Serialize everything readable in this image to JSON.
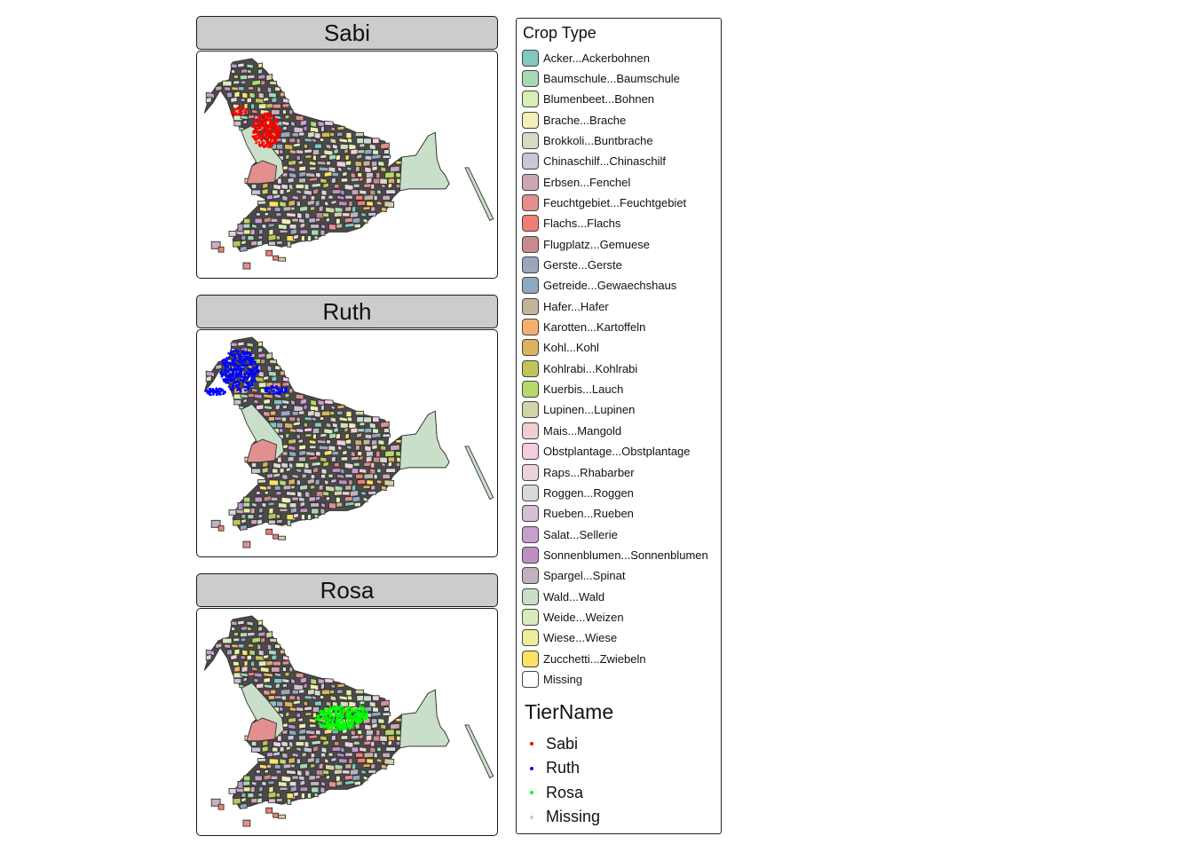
{
  "panels": [
    {
      "title": "Sabi",
      "color": "#ff0000",
      "cluster": "sabi"
    },
    {
      "title": "Ruth",
      "color": "#0000ff",
      "cluster": "ruth"
    },
    {
      "title": "Rosa",
      "color": "#00ff00",
      "cluster": "rosa"
    }
  ],
  "legend": {
    "title": "Crop Type",
    "items": [
      {
        "label": "Acker...Ackerbohnen",
        "color": "#7fc9c0"
      },
      {
        "label": "Baumschule...Baumschule",
        "color": "#a8d8b5"
      },
      {
        "label": "Blumenbeet...Bohnen",
        "color": "#d9eeb5"
      },
      {
        "label": "Brache...Brache",
        "color": "#f2efb8"
      },
      {
        "label": "Brokkoli...Buntbrache",
        "color": "#d9d9c6"
      },
      {
        "label": "Chinaschilf...Chinaschilf",
        "color": "#c9c6d8"
      },
      {
        "label": "Erbsen...Fenchel",
        "color": "#cfa6b8"
      },
      {
        "label": "Feuchtgebiet...Feuchtgebiet",
        "color": "#e28f8f"
      },
      {
        "label": "Flachs...Flachs",
        "color": "#f07f72"
      },
      {
        "label": "Flugplatz...Gemuese",
        "color": "#c9898e"
      },
      {
        "label": "Gerste...Gerste",
        "color": "#9aa6bd"
      },
      {
        "label": "Getreide...Gewaechshaus",
        "color": "#8ea9c0"
      },
      {
        "label": "Hafer...Hafer",
        "color": "#c4b39c"
      },
      {
        "label": "Karotten...Kartoffeln",
        "color": "#f2b06c"
      },
      {
        "label": "Kohl...Kohl",
        "color": "#dcb25e"
      },
      {
        "label": "Kohlrabi...Kohlrabi",
        "color": "#c3c35c"
      },
      {
        "label": "Kuerbis...Lauch",
        "color": "#b5d96a"
      },
      {
        "label": "Lupinen...Lupinen",
        "color": "#d3d3a8"
      },
      {
        "label": "Mais...Mangold",
        "color": "#f0cdd0"
      },
      {
        "label": "Obstplantage...Obstplantage",
        "color": "#f3cde0"
      },
      {
        "label": "Raps...Rhabarber",
        "color": "#ebd4dc"
      },
      {
        "label": "Roggen...Roggen",
        "color": "#d9d9d9"
      },
      {
        "label": "Rueben...Rueben",
        "color": "#d4bfd6"
      },
      {
        "label": "Salat...Sellerie",
        "color": "#c69fcf"
      },
      {
        "label": "Sonnenblumen...Sonnenblumen",
        "color": "#bf8fc4"
      },
      {
        "label": "Spargel...Spinat",
        "color": "#c2b2bf"
      },
      {
        "label": "Wald...Wald",
        "color": "#c9dfc9"
      },
      {
        "label": "Weide...Weizen",
        "color": "#d9ebbc"
      },
      {
        "label": "Wiese...Wiese",
        "color": "#eeed9a"
      },
      {
        "label": "Zucchetti...Zwiebeln",
        "color": "#ffe066"
      },
      {
        "label": "Missing",
        "color": "#ffffff"
      }
    ],
    "tier_title": "TierName",
    "tier_items": [
      {
        "label": "Sabi",
        "color": "#ff0000"
      },
      {
        "label": "Ruth",
        "color": "#0000ff"
      },
      {
        "label": "Rosa",
        "color": "#00ff00"
      },
      {
        "label": "Missing",
        "color": "#cccccc"
      }
    ]
  }
}
